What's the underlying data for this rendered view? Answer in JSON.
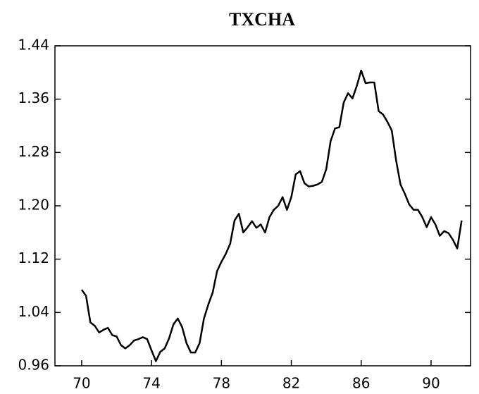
{
  "chart_data": {
    "type": "line",
    "title": "TXCHA",
    "x": [
      70,
      70.25,
      70.5,
      70.75,
      71,
      71.25,
      71.5,
      71.75,
      72,
      72.25,
      72.5,
      72.75,
      73,
      73.25,
      73.5,
      73.75,
      74,
      74.25,
      74.5,
      74.75,
      75,
      75.25,
      75.5,
      75.75,
      76,
      76.25,
      76.5,
      76.75,
      77,
      77.25,
      77.5,
      77.75,
      78,
      78.25,
      78.5,
      78.75,
      79,
      79.25,
      79.5,
      79.75,
      80,
      80.25,
      80.5,
      80.75,
      81,
      81.25,
      81.5,
      81.75,
      82,
      82.25,
      82.5,
      82.75,
      83,
      83.25,
      83.5,
      83.75,
      84,
      84.25,
      84.5,
      84.75,
      85,
      85.25,
      85.5,
      85.75,
      86,
      86.25,
      86.5,
      86.75,
      87,
      87.25,
      87.5,
      87.75,
      88,
      88.25,
      88.5,
      88.75,
      89,
      89.25,
      89.5,
      89.75,
      90,
      90.25,
      90.5,
      90.75,
      91,
      91.25,
      91.5,
      91.75
    ],
    "series": [
      {
        "name": "TXCHA",
        "color": "#000000",
        "values": [
          1.074,
          1.065,
          1.025,
          1.02,
          1.01,
          1.014,
          1.017,
          1.006,
          1.004,
          0.991,
          0.986,
          0.991,
          0.998,
          1.0,
          1.003,
          1.0,
          0.983,
          0.967,
          0.981,
          0.986,
          1.001,
          1.022,
          1.031,
          1.018,
          0.994,
          0.98,
          0.98,
          0.994,
          1.031,
          1.052,
          1.07,
          1.102,
          1.116,
          1.128,
          1.143,
          1.178,
          1.188,
          1.16,
          1.168,
          1.177,
          1.167,
          1.172,
          1.16,
          1.183,
          1.194,
          1.2,
          1.213,
          1.194,
          1.213,
          1.247,
          1.252,
          1.234,
          1.229,
          1.23,
          1.232,
          1.236,
          1.255,
          1.297,
          1.316,
          1.318,
          1.355,
          1.369,
          1.361,
          1.38,
          1.403,
          1.384,
          1.385,
          1.385,
          1.342,
          1.337,
          1.326,
          1.313,
          1.268,
          1.232,
          1.218,
          1.202,
          1.194,
          1.194,
          1.183,
          1.168,
          1.183,
          1.172,
          1.155,
          1.162,
          1.159,
          1.149,
          1.136,
          1.178
        ]
      }
    ],
    "xlim": [
      68.47,
      92.26
    ],
    "xticks": [
      70,
      74,
      78,
      82,
      86,
      90
    ],
    "ylim": [
      0.96,
      1.44
    ],
    "yticks": [
      0.96,
      1.04,
      1.12,
      {
        "value": 1.2,
        "label": "1.20"
      },
      1.28,
      1.36,
      1.44
    ],
    "grid": false
  }
}
